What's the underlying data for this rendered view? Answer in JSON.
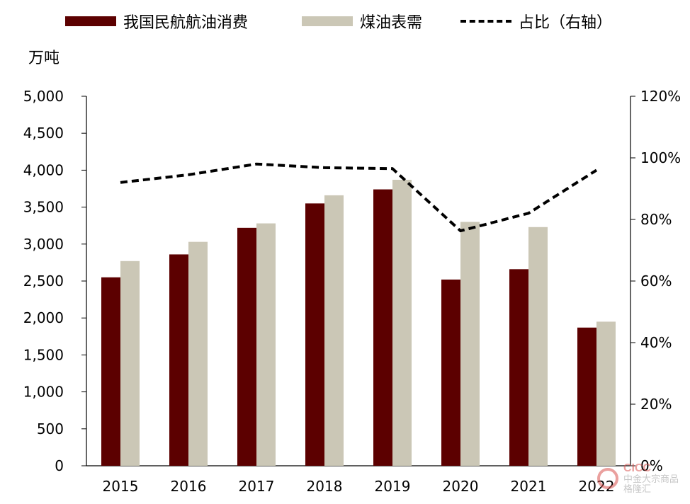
{
  "chart_data": {
    "type": "bar",
    "categories": [
      "2015",
      "2016",
      "2017",
      "2018",
      "2019",
      "2020",
      "2021",
      "2022"
    ],
    "series": [
      {
        "name": "我国民航航油消费",
        "type": "bar",
        "axis": "left",
        "color": "#5c0000",
        "values": [
          2550,
          2860,
          3220,
          3550,
          3740,
          2520,
          2660,
          1870
        ]
      },
      {
        "name": "煤油表需",
        "type": "bar",
        "axis": "left",
        "color": "#cbc7b6",
        "values": [
          2770,
          3030,
          3280,
          3660,
          3870,
          3300,
          3230,
          1950
        ]
      },
      {
        "name": "占比（右轴）",
        "type": "line",
        "axis": "right",
        "color": "#000000",
        "values": [
          92,
          94.5,
          98,
          96.8,
          96.5,
          76.3,
          82,
          96
        ]
      }
    ],
    "y_left": {
      "label": "万吨",
      "min": 0,
      "max": 5000,
      "step": 500,
      "ticks": [
        "0",
        "500",
        "1,000",
        "1,500",
        "2,000",
        "2,500",
        "3,000",
        "3,500",
        "4,000",
        "4,500",
        "5,000"
      ]
    },
    "y_right": {
      "min": 0,
      "max": 120,
      "step": 20,
      "ticks": [
        "0%",
        "20%",
        "40%",
        "60%",
        "80%",
        "100%",
        "120%"
      ]
    },
    "legend_position": "top",
    "grid": false
  },
  "watermark": {
    "name": "CICC",
    "sub": "中金大宗商品",
    "brand": "格隆汇"
  }
}
